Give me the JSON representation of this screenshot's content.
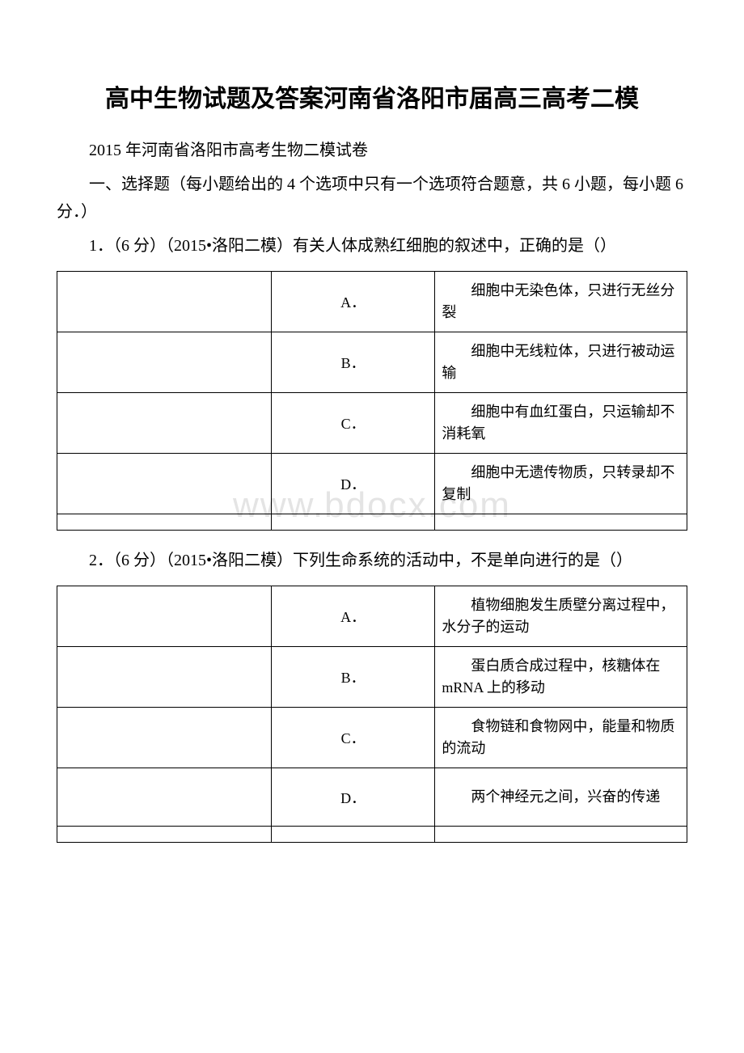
{
  "title": "高中生物试题及答案河南省洛阳市届高三高考二模",
  "subtitle": "2015 年河南省洛阳市高考生物二模试卷",
  "section_header": "一、选择题（每小题给出的 4 个选项中只有一个选项符合题意，共 6 小题，每小题 6 分．）",
  "watermark": "www.bdocx.com",
  "questions": [
    {
      "prompt": "1．（6 分）（2015•洛阳二模）有关人体成熟红细胞的叙述中，正确的是（）",
      "options": [
        {
          "label": "A．",
          "text": "细胞中无染色体，只进行无丝分裂"
        },
        {
          "label": "B．",
          "text": "细胞中无线粒体，只进行被动运输"
        },
        {
          "label": "C．",
          "text": "细胞中有血红蛋白，只运输却不消耗氧"
        },
        {
          "label": "D．",
          "text": "细胞中无遗传物质，只转录却不复制"
        }
      ]
    },
    {
      "prompt": "2．（6 分）（2015•洛阳二模）下列生命系统的活动中，不是单向进行的是（）",
      "options": [
        {
          "label": "A．",
          "text": "植物细胞发生质壁分离过程中，水分子的运动"
        },
        {
          "label": "B．",
          "text": "蛋白质合成过程中，核糖体在 mRNA 上的移动"
        },
        {
          "label": "C．",
          "text": "食物链和食物网中，能量和物质的流动"
        },
        {
          "label": "D．",
          "text": "两个神经元之间，兴奋的传递"
        }
      ]
    }
  ]
}
